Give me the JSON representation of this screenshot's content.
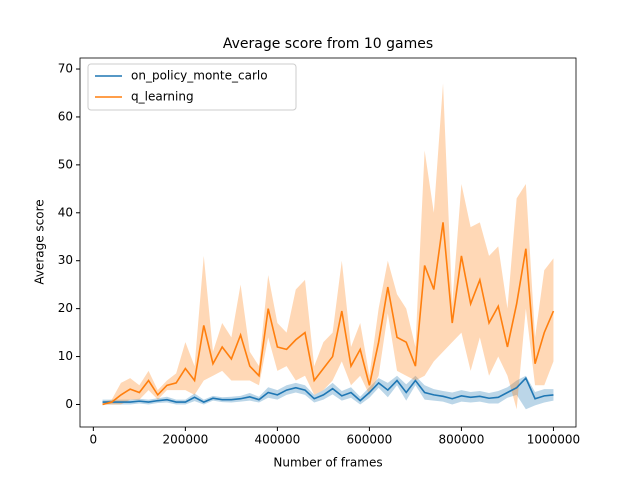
{
  "chart_data": {
    "type": "line",
    "title": "Average score from 10 games",
    "x_label": "Number of frames",
    "y_label": "Average score",
    "x": [
      20000,
      40000,
      60000,
      80000,
      100000,
      120000,
      140000,
      160000,
      180000,
      200000,
      220000,
      240000,
      260000,
      280000,
      300000,
      320000,
      340000,
      360000,
      380000,
      400000,
      420000,
      440000,
      460000,
      480000,
      500000,
      520000,
      540000,
      560000,
      580000,
      600000,
      620000,
      640000,
      660000,
      680000,
      700000,
      720000,
      740000,
      760000,
      780000,
      800000,
      820000,
      840000,
      860000,
      880000,
      900000,
      920000,
      940000,
      960000,
      980000,
      1000000
    ],
    "series": [
      {
        "name": "on_policy_monte_carlo",
        "color": "#1f77b4",
        "values": [
          0.5,
          0.5,
          0.5,
          0.5,
          0.7,
          0.5,
          0.8,
          1,
          0.5,
          0.5,
          1.5,
          0.5,
          1.3,
          1,
          1,
          1.2,
          1.6,
          1,
          2.5,
          2,
          3,
          3.5,
          3,
          1.2,
          2,
          3.3,
          1.8,
          2.5,
          0.8,
          2.5,
          4.5,
          3,
          5,
          2.5,
          5,
          2.5,
          2,
          1.7,
          1.2,
          1.8,
          1.5,
          1.7,
          1.3,
          1.5,
          2.5,
          3.5,
          5.5,
          1.2,
          1.8,
          2
        ],
        "upper": [
          1,
          1,
          1,
          1,
          1.2,
          1,
          1.3,
          1.6,
          1,
          1,
          2.3,
          1,
          1.8,
          1.5,
          1.6,
          1.8,
          2.4,
          1.6,
          3.6,
          3,
          4,
          4.5,
          4,
          2,
          3,
          4.5,
          2.8,
          3.6,
          1.6,
          3.6,
          5.5,
          4.5,
          6,
          4.2,
          6,
          4,
          3.2,
          2.8,
          2.5,
          3,
          2.6,
          2.8,
          2.4,
          2.8,
          3.6,
          5,
          6,
          2.6,
          3.2,
          3.2
        ],
        "lower": [
          0,
          0,
          0,
          0,
          0.2,
          0,
          0.3,
          0.4,
          0,
          0,
          0.7,
          0,
          0.8,
          0.5,
          0.4,
          0.6,
          0.8,
          0.4,
          1.4,
          1,
          2,
          2.5,
          2,
          0.4,
          1,
          2.1,
          0.8,
          1.4,
          0,
          1.4,
          3.5,
          1.5,
          4,
          0.8,
          4,
          1,
          0.8,
          0.6,
          0,
          0.6,
          0.4,
          0.6,
          0.2,
          0.2,
          1.4,
          2,
          -1,
          -0.2,
          0.4,
          0.8
        ]
      },
      {
        "name": "q_learning",
        "color": "#ff7f0e",
        "values": [
          0,
          0.5,
          2,
          3.2,
          2.5,
          5,
          2,
          4,
          4.5,
          7.5,
          5,
          16.5,
          8.5,
          12,
          9.5,
          14.5,
          8,
          6,
          20,
          12,
          11.5,
          13.5,
          15,
          5,
          7.5,
          10,
          19.5,
          8,
          11.5,
          4,
          13,
          24.5,
          14,
          13,
          8,
          29,
          24,
          38,
          17,
          31,
          21,
          26,
          17,
          20.5,
          12,
          21,
          32.5,
          8.5,
          15,
          19.5
        ],
        "upper": [
          0.5,
          1,
          4.5,
          5.5,
          4,
          7,
          3,
          5,
          6.5,
          13,
          8,
          31,
          11,
          17,
          14,
          25,
          11,
          8,
          27,
          17,
          15,
          24,
          26,
          8,
          13,
          15,
          30,
          12,
          17,
          6,
          20,
          30,
          23,
          20,
          12,
          53,
          40,
          67,
          21,
          46,
          37,
          38,
          31,
          33,
          20,
          43,
          46,
          14,
          28,
          30.5
        ],
        "lower": [
          0,
          0,
          0,
          1,
          1,
          3,
          1,
          3,
          3,
          3,
          2,
          5,
          6,
          7,
          5,
          5,
          5,
          4,
          14,
          7,
          8,
          5,
          6,
          2,
          3,
          5,
          9,
          4,
          6,
          2,
          6,
          19,
          7,
          6,
          5,
          6,
          9,
          11,
          13,
          15,
          7,
          14,
          6,
          10,
          6,
          -1,
          20,
          4,
          4,
          9
        ]
      }
    ],
    "xlim": [
      -29000,
      1049000
    ],
    "ylim": [
      -4.7,
      72.3
    ],
    "xticks": [
      0,
      200000,
      400000,
      600000,
      800000,
      1000000
    ],
    "yticks": [
      0,
      10,
      20,
      30,
      40,
      50,
      60,
      70
    ],
    "legend": "upper left",
    "grid": false
  }
}
